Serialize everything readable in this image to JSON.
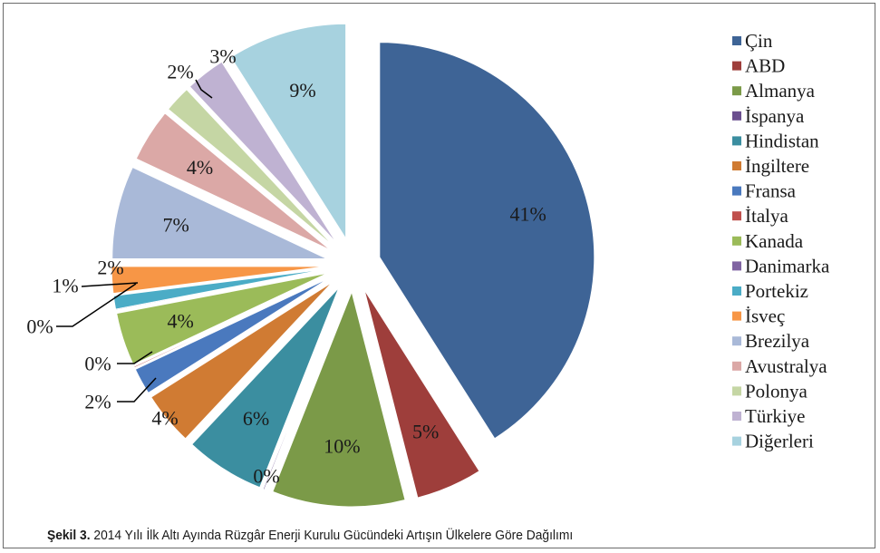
{
  "chart_data": {
    "type": "pie",
    "categories": [
      "Çin",
      "ABD",
      "Almanya",
      "İspanya",
      "Hindistan",
      "İngiltere",
      "Fransa",
      "İtalya",
      "Kanada",
      "Danimarka",
      "Portekiz",
      "İsveç",
      "Brezilya",
      "Avustralya",
      "Polonya",
      "Türkiye",
      "Diğerleri"
    ],
    "values": [
      41,
      5,
      10,
      0,
      6,
      4,
      2,
      0,
      4,
      0,
      1,
      2,
      7,
      4,
      2,
      3,
      9
    ],
    "labels": [
      "41%",
      "5%",
      "10%",
      "0%",
      "6%",
      "4%",
      "2%",
      "0%",
      "4%",
      "0%",
      "1%",
      "2%",
      "7%",
      "4%",
      "2%",
      "3%",
      "9%"
    ],
    "colors": [
      "#3e6496",
      "#9e3e3b",
      "#7b9a48",
      "#6b4f8f",
      "#3b8ea0",
      "#d07b33",
      "#4a79be",
      "#c0504d",
      "#9bbb59",
      "#8064a2",
      "#4bacc6",
      "#f79646",
      "#a9b9d8",
      "#dba8a6",
      "#c5d6a4",
      "#bfb2d2",
      "#a7d2df"
    ],
    "legend_position": "right",
    "exploded": true
  },
  "caption": {
    "bold": "Şekil 3.",
    "text": " 2014 Yılı İlk Altı Ayında Rüzgâr Enerji Kurulu Gücündeki Artışın Ülkelere Göre Dağılımı"
  }
}
